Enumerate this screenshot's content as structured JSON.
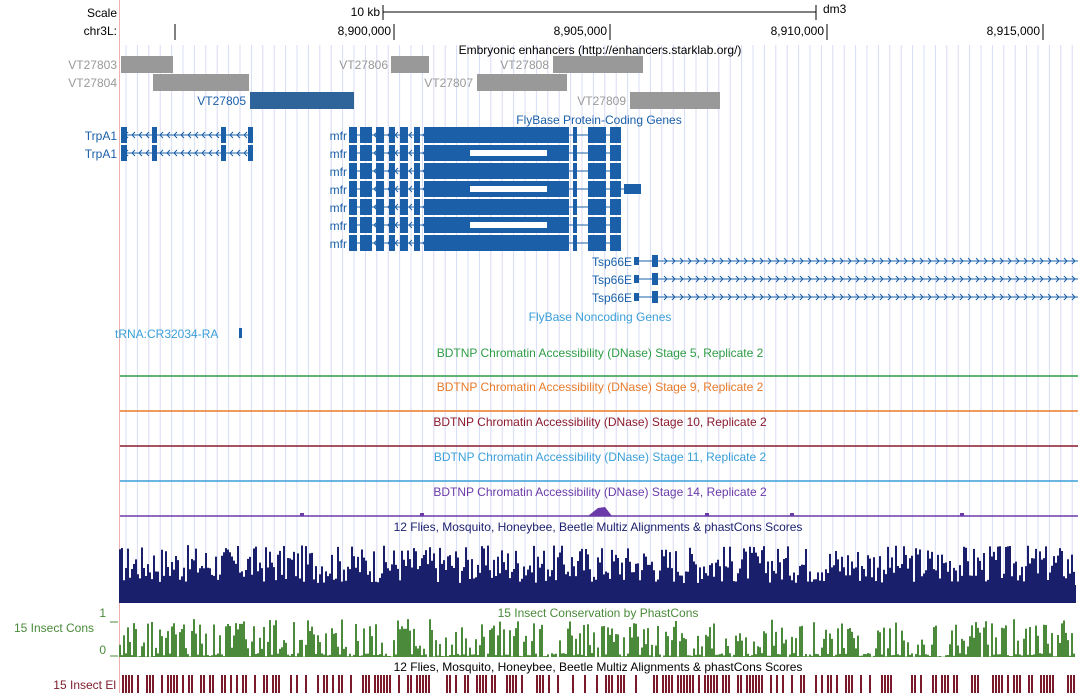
{
  "scale": {
    "label": "Scale",
    "bar_label": "10 kb",
    "assembly": "dm3"
  },
  "ruler": {
    "chrom_label": "chr3L:",
    "positions": [
      "8,900,000",
      "8,905,000",
      "8,910,000",
      "8,915,000"
    ]
  },
  "enhancers": {
    "title": "Embryonic enhancers (http://enhancers.starklab.org/)",
    "items": [
      {
        "name": "VT27803",
        "highlighted": false
      },
      {
        "name": "VT27804",
        "highlighted": false
      },
      {
        "name": "VT27805",
        "highlighted": true
      },
      {
        "name": "VT27806",
        "highlighted": false
      },
      {
        "name": "VT27807",
        "highlighted": false
      },
      {
        "name": "VT27808",
        "highlighted": false
      },
      {
        "name": "VT27809",
        "highlighted": false
      }
    ]
  },
  "protein_coding": {
    "title": "FlyBase Protein-Coding Genes",
    "trpa1": [
      "TrpA1",
      "TrpA1"
    ],
    "mfr": [
      "mfr",
      "mfr",
      "mfr",
      "mfr",
      "mfr",
      "mfr",
      "mfr"
    ],
    "tsp66e": [
      "Tsp66E",
      "Tsp66E",
      "Tsp66E"
    ]
  },
  "noncoding": {
    "title": "FlyBase Noncoding Genes",
    "gene": "tRNA:CR32034-RA"
  },
  "dnase_tracks": [
    {
      "label": "BDTNP Chromatin Accessibility (DNase) Stage 5, Replicate 2",
      "color": "#2e9c45"
    },
    {
      "label": "BDTNP Chromatin Accessibility (DNase) Stage 9, Replicate 2",
      "color": "#e87a2a"
    },
    {
      "label": "BDTNP Chromatin Accessibility (DNase) Stage 10, Replicate 2",
      "color": "#8b1a2e"
    },
    {
      "label": "BDTNP Chromatin Accessibility (DNase) Stage 11, Replicate 2",
      "color": "#3a9fd8"
    },
    {
      "label": "BDTNP Chromatin Accessibility (DNase) Stage 14, Replicate 2",
      "color": "#6a3aa8"
    }
  ],
  "conservation": {
    "multiz_title": "12 Flies, Mosquito, Honeybee, Beetle Multiz Alignments & phastCons Scores",
    "phastcons_title": "15 Insect Conservation by PhastCons",
    "side_label": "15 Insect Cons",
    "ymax": "1",
    "ymin": "0",
    "multiz_title_2": "12 Flies, Mosquito, Honeybee, Beetle Multiz Alignments & phastCons Scores",
    "elements_label": "15 Insect El"
  },
  "colors": {
    "gene_blue": "#1a5fa8",
    "enhancer_gray": "#999999",
    "enhancer_highlight": "#2f649a",
    "multiz_navy": "#1a1f6b",
    "cons_green": "#4a8a3a",
    "elements_maroon": "#7a1a2a",
    "grid_blue": "#d8dcf5",
    "left_guide": "#f0b0b0"
  }
}
